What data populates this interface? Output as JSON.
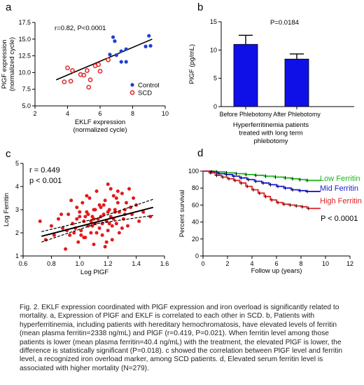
{
  "chart_data": [
    {
      "panel_label": "a",
      "type": "scatter",
      "annotation": "r=0.82, P<0.0001",
      "xlabel_lines": [
        "EKLF expression",
        "(normalized cycle)"
      ],
      "ylabel_lines": [
        "PlGF expression",
        "(normalized cycle)"
      ],
      "xlim": [
        2,
        10
      ],
      "ylim": [
        5.0,
        17.5
      ],
      "xticks": [
        "2",
        "4",
        "6",
        "8",
        "10"
      ],
      "xtick_values": [
        2,
        4,
        6,
        8,
        10
      ],
      "yticks": [
        "5.0",
        "7.5",
        "10.0",
        "12.5",
        "15.0",
        "17.5"
      ],
      "ytick_values": [
        5.0,
        7.5,
        10.0,
        12.5,
        15.0,
        17.5
      ],
      "regression": {
        "x": [
          3.3,
          9.2
        ],
        "y": [
          8.9,
          15.0
        ]
      },
      "legend_position": "bottom-right",
      "series": [
        {
          "name": "Control",
          "color": "#1f3fd1",
          "marker": "filled",
          "x": [
            6.8,
            6.9,
            6.6,
            7.0,
            7.3,
            7.6,
            7.3,
            8.8,
            9.0,
            9.1,
            7.6
          ],
          "y": [
            15.3,
            14.7,
            12.7,
            12.6,
            13.2,
            13.5,
            11.6,
            13.9,
            15.5,
            14.0,
            11.6
          ]
        },
        {
          "name": "SCD",
          "color": "#e03030",
          "marker": "open",
          "x": [
            3.8,
            4.0,
            4.3,
            4.2,
            5.0,
            5.2,
            5.4,
            5.7,
            5.9,
            6.0,
            6.5,
            4.8,
            5.3
          ],
          "y": [
            8.6,
            10.7,
            10.3,
            8.7,
            9.6,
            10.3,
            8.9,
            11.0,
            11.2,
            10.2,
            11.9,
            9.7,
            7.8
          ]
        }
      ]
    },
    {
      "panel_label": "b",
      "type": "bar",
      "annotation": "P=0.0184",
      "categories": [
        "Before Phlebotomy",
        "After Phlebotomy"
      ],
      "values": [
        11.0,
        8.4
      ],
      "errors": [
        1.6,
        0.9
      ],
      "color": "#0f0fe8",
      "ylabel": "PlGF (pg/mL)",
      "ylim": [
        0,
        15
      ],
      "yticks": [
        "0",
        "5",
        "10",
        "15"
      ],
      "ytick_values": [
        0,
        5,
        10,
        15
      ],
      "subtitle_lines": [
        "Hyperferritinemia patients",
        "treated with long term",
        "phlebotomy"
      ]
    },
    {
      "panel_label": "c",
      "type": "scatter",
      "annotation_lines": [
        "r = 0.449",
        "p < 0.001"
      ],
      "xlabel": "Log PlGF",
      "ylabel": "Log Ferritin",
      "xlim": [
        0.6,
        1.6
      ],
      "ylim": [
        1,
        5
      ],
      "xticks": [
        "0.6",
        "0.8",
        "1.0",
        "1.2",
        "1.4",
        "1.6"
      ],
      "xtick_values": [
        0.6,
        0.8,
        1.0,
        1.2,
        1.4,
        1.6
      ],
      "yticks": [
        "1",
        "2",
        "3",
        "4",
        "5"
      ],
      "ytick_values": [
        1,
        2,
        3,
        4,
        5
      ],
      "regression": {
        "x": [
          0.73,
          1.52
        ],
        "y": [
          1.85,
          3.1
        ]
      },
      "ci_upper": {
        "x": [
          0.73,
          1.12,
          1.52
        ],
        "y": [
          2.05,
          2.62,
          3.45
        ]
      },
      "ci_lower": {
        "x": [
          0.73,
          1.12,
          1.52
        ],
        "y": [
          1.6,
          2.4,
          2.75
        ]
      },
      "point_color": "#e41a1c",
      "points": {
        "x": [
          0.72,
          0.76,
          0.8,
          0.82,
          0.85,
          0.88,
          0.9,
          0.92,
          0.93,
          0.95,
          0.96,
          0.98,
          0.99,
          1.0,
          1.01,
          1.02,
          1.03,
          1.04,
          1.05,
          1.06,
          1.07,
          1.08,
          1.09,
          1.1,
          1.1,
          1.11,
          1.12,
          1.13,
          1.14,
          1.15,
          1.16,
          1.17,
          1.18,
          1.19,
          1.2,
          1.2,
          1.21,
          1.22,
          1.23,
          1.24,
          1.25,
          1.26,
          1.27,
          1.28,
          1.3,
          1.31,
          1.32,
          1.34,
          1.35,
          1.37,
          1.4,
          1.42,
          1.45,
          1.5,
          0.87,
          0.94,
          0.97,
          1.0,
          1.03,
          1.05,
          1.08,
          1.1,
          1.12,
          1.15,
          1.17,
          1.19,
          1.21,
          1.22,
          1.24,
          1.26,
          1.28,
          1.3,
          1.33,
          1.36,
          1.18,
          1.14,
          1.09,
          1.06,
          1.01,
          0.98,
          1.25,
          1.32,
          1.38,
          1.2,
          1.16,
          1.11,
          1.04,
          0.91,
          1.23,
          1.27
        ],
        "y": [
          2.5,
          1.7,
          2.3,
          1.9,
          2.6,
          2.2,
          1.3,
          2.8,
          1.9,
          2.4,
          2.0,
          3.1,
          1.6,
          2.7,
          2.1,
          3.3,
          2.5,
          1.8,
          2.9,
          2.3,
          3.5,
          2.0,
          2.7,
          3.0,
          1.5,
          2.4,
          3.8,
          2.6,
          2.2,
          3.1,
          1.9,
          2.8,
          3.4,
          2.5,
          4.1,
          2.1,
          3.0,
          2.7,
          1.7,
          3.6,
          2.9,
          2.4,
          3.3,
          2.0,
          3.7,
          2.6,
          3.0,
          2.3,
          3.9,
          2.8,
          3.2,
          2.5,
          2.9,
          2.7,
          2.8,
          3.4,
          2.2,
          2.9,
          1.8,
          3.6,
          2.5,
          2.6,
          2.0,
          2.7,
          3.2,
          1.6,
          2.4,
          3.9,
          2.6,
          3.5,
          2.9,
          2.2,
          3.3,
          3.1,
          1.4,
          3.2,
          2.3,
          2.8,
          1.9,
          2.6,
          3.0,
          2.8,
          3.5,
          2.9,
          2.4,
          3.0,
          2.7,
          2.1,
          2.3,
          3.8
        ]
      }
    },
    {
      "panel_label": "d",
      "type": "line",
      "subtype": "kaplan-meier",
      "annotation": "P < 0.0001",
      "xlabel": "Follow up (years)",
      "ylabel": "Percent survival",
      "xlim": [
        0,
        12
      ],
      "ylim": [
        0,
        100
      ],
      "xticks": [
        "0",
        "2",
        "4",
        "6",
        "8",
        "10",
        "12"
      ],
      "xtick_values": [
        0,
        2,
        4,
        6,
        8,
        10,
        12
      ],
      "yticks": [
        "0",
        "20",
        "40",
        "60",
        "80",
        "100"
      ],
      "ytick_values": [
        0,
        20,
        40,
        60,
        80,
        100
      ],
      "series": [
        {
          "name": "Low Ferritin",
          "color": "#1db51d",
          "x": [
            0,
            1.0,
            1.8,
            2.6,
            3.4,
            4.2,
            5.0,
            5.8,
            6.6,
            7.2,
            7.8,
            8.4,
            9.6
          ],
          "y": [
            100,
            99,
            98,
            97,
            96,
            95,
            94,
            93,
            92,
            91,
            90,
            89,
            89
          ]
        },
        {
          "name": "Mid Ferritin",
          "color": "#1a1ad6",
          "x": [
            0,
            0.6,
            1.2,
            1.8,
            2.4,
            3.0,
            3.6,
            4.2,
            4.8,
            5.4,
            6.0,
            6.6,
            7.2,
            7.8,
            8.4,
            9.6
          ],
          "y": [
            100,
            99,
            97,
            96,
            94,
            92,
            90,
            88,
            86,
            84,
            82,
            80,
            78,
            77,
            76,
            76
          ]
        },
        {
          "name": "High Ferritin",
          "color": "#e02020",
          "x": [
            0,
            0.5,
            1.0,
            1.5,
            2.0,
            2.5,
            3.0,
            3.5,
            4.0,
            4.5,
            5.0,
            5.5,
            6.0,
            6.5,
            7.0,
            7.5,
            8.0,
            8.5,
            9.6
          ],
          "y": [
            100,
            98,
            95,
            93,
            91,
            89,
            86,
            82,
            78,
            74,
            70,
            66,
            63,
            61,
            60,
            59,
            58,
            56,
            56
          ]
        }
      ]
    }
  ],
  "caption": "Fig. 2. EKLF expression coordinated with PlGF expression and iron overload is significantly related to mortality. a, Expression of PlGF and EKLF is correlated to each other in SCD. b, Patients with hyperferritinemia, including patients with hereditary hemochromatosis, have elevated levels of ferritin (mean plasma ferritin=2338 ng/mL) and PlGF (r=0.419, P=0.021). When ferritin level among those patients is lower (mean plasma ferritin=40.4 ng/mL) with the treatment, the elevated PlGF is lower, the difference is statistically significant (P=0.018). c showed the correlation between PlGF level and ferritin level, a recognized iron overload marker,  among SCD patients. d, Elevated serum ferritin level is associated with higher mortality (N=279)."
}
